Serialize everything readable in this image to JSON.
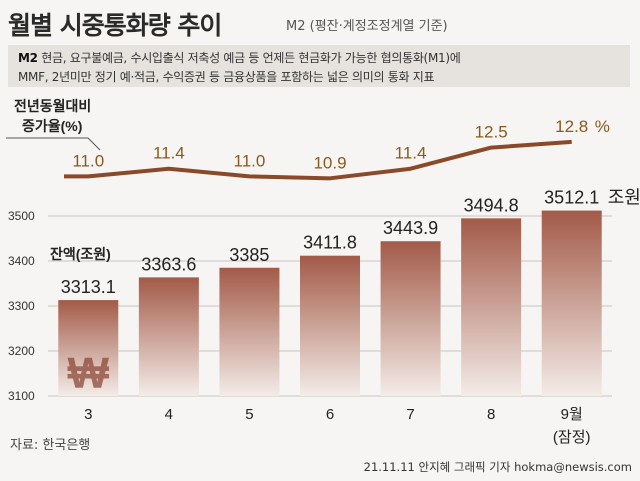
{
  "header": {
    "title": "월별 시중통화량 추이",
    "subtitle": "M2 (평잔·계정조정계열 기준)"
  },
  "description": {
    "key": "M2",
    "line1": "현금, 요구불예금, 수시입출식 저축성 예금 등 언제든 현금화가 가능한 협의통화(M1)에",
    "line2": "MMF, 2년미만 정기 예·적금, 수익증권 등 금융상품을 포함하는 넓은 의미의 통화 지표"
  },
  "footer": {
    "source": "자료: 한국은행",
    "credit": "21.11.11 안지혜 그래픽 기자 hokma@newsis.com"
  },
  "chart_data": {
    "type": "bar",
    "categories": [
      "3",
      "4",
      "5",
      "6",
      "7",
      "8",
      "9월"
    ],
    "category_note": "(잠정)",
    "bar_labels": [
      "3313.1",
      "3363.6",
      "3385",
      "3411.8",
      "3443.9",
      "3494.8",
      "3512.1"
    ],
    "bar_unit": "조원",
    "ylabel": "잔액(조원)",
    "ylim": [
      3100,
      3500
    ],
    "yticks": [
      "3100",
      "3200",
      "3300",
      "3400",
      "3500"
    ],
    "series": [
      {
        "name": "잔액(조원)",
        "type": "bar",
        "values": [
          3313.1,
          3363.6,
          3385,
          3411.8,
          3443.9,
          3494.8,
          3512.1
        ]
      },
      {
        "name": "전년동월대비 증가율(%)",
        "type": "line",
        "labels": [
          "11.0",
          "11.4",
          "11.0",
          "10.9",
          "11.4",
          "12.5",
          "12.8"
        ],
        "values": [
          11.0,
          11.4,
          11.0,
          10.9,
          11.4,
          12.5,
          12.8
        ]
      }
    ],
    "line_label_line1": "전년동월대비",
    "line_label_line2": "증가율(%)",
    "line_unit": "%",
    "won_symbol": "₩",
    "colors": {
      "bar_top": "#a35a48",
      "bar_bottom": "#f3ece8",
      "line": "#8a4a2a",
      "line_labels": "#8a5a1c",
      "grid": "#c9c4c0"
    }
  }
}
